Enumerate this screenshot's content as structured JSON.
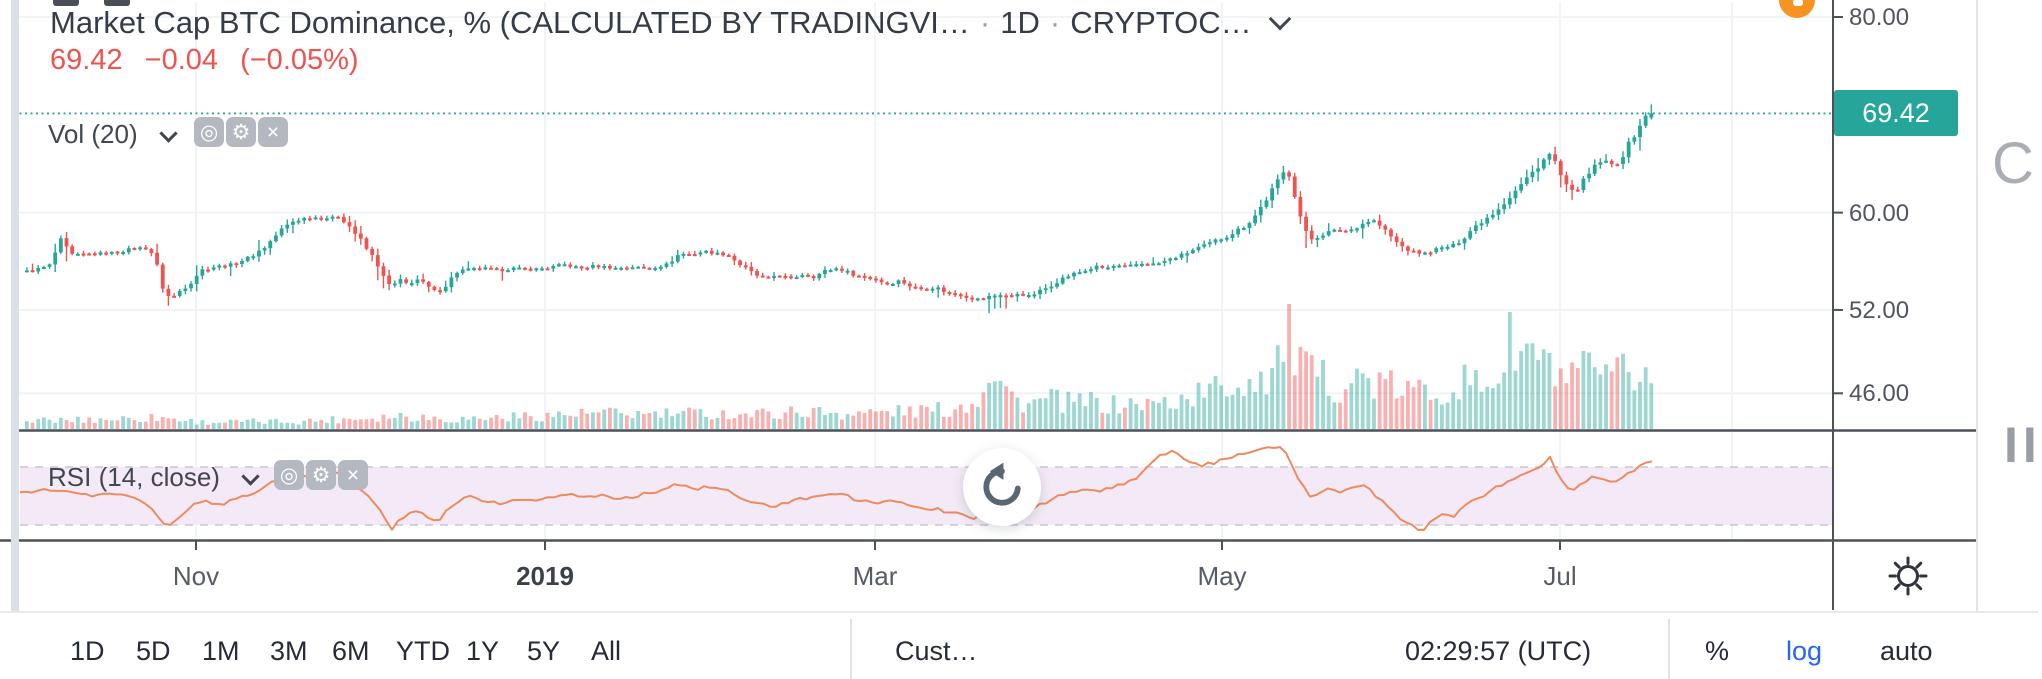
{
  "header": {
    "title": "Market Cap BTC Dominance, % (CALCULATED BY TRADINGVI…",
    "sep": "·",
    "interval": "1D",
    "exchange": "CRYPTOC…"
  },
  "quote": {
    "last": "69.42",
    "change": "−0.04",
    "change_pct": "(−0.05%)"
  },
  "indicators": {
    "volume": {
      "label": "Vol (20)"
    },
    "rsi": {
      "label": "RSI (14, close)"
    },
    "icon_glyphs": [
      "◎",
      "⚙",
      "×"
    ],
    "icon_names": [
      "visibility-icon",
      "settings-icon",
      "remove-icon"
    ]
  },
  "price_axis": {
    "last_price_label": "69.42",
    "ticks": [
      {
        "label": "80.00",
        "price": 80
      },
      {
        "label": "60.00",
        "price": 60
      },
      {
        "label": "52.00",
        "price": 52
      },
      {
        "label": "46.00",
        "price": 46
      }
    ]
  },
  "time_axis": {
    "ticks": [
      {
        "label": "Nov",
        "x": 196,
        "bold": false
      },
      {
        "label": "2019",
        "x": 545,
        "bold": true
      },
      {
        "label": "Mar",
        "x": 875,
        "bold": false
      },
      {
        "label": "May",
        "x": 1222,
        "bold": false
      },
      {
        "label": "Jul",
        "x": 1560,
        "bold": false
      }
    ],
    "extra_gridline_x": 1732
  },
  "footer": {
    "ranges": [
      "1D",
      "5D",
      "1M",
      "3M",
      "6M",
      "YTD",
      "1Y",
      "5Y",
      "All"
    ],
    "custom_label": "Cust…",
    "clock": "02:29:57 (UTC)",
    "percent_label": "%",
    "log_label": "log",
    "auto_label": "auto"
  },
  "right_edge": {
    "top_letter": "C",
    "bottom_letters": "II"
  },
  "colors": {
    "up": "#26a69a",
    "down": "#ef5350",
    "vol_up": "rgba(38,166,154,0.45)",
    "vol_down": "rgba(239,83,80,0.45)",
    "rsi_line": "#ec8b5e",
    "rsi_band": "#f4eaf7",
    "rsi_dash": "#cbc3d4",
    "grid": "#f0f3f8",
    "axis": "#4d515a",
    "badge": "#26a69a",
    "log_blue": "#2962ff",
    "orange_badge": "#f79321"
  },
  "chart_data": {
    "type": "candlestick",
    "title": "Market Cap BTC Dominance, %",
    "interval": "1D",
    "price_scale": "logarithmic",
    "x_tick_labels": [
      "Nov",
      "2019",
      "Mar",
      "May",
      "Jul"
    ],
    "y_ticks": [
      80,
      60,
      52,
      46
    ],
    "last_price": 69.42,
    "candle_start_x": 25,
    "candle_step": 5.66,
    "candle_end_x": 1652,
    "price_y_map": {
      "y_at_80": 17,
      "log_coeff": 680
    },
    "rsi_band": [
      30,
      70
    ],
    "series_close_keypoints": [
      [
        22,
        55.0
      ],
      [
        40,
        55.3
      ],
      [
        50,
        55.6
      ],
      [
        57,
        57.6
      ],
      [
        62,
        57.3
      ],
      [
        68,
        56.3
      ],
      [
        78,
        56.4
      ],
      [
        95,
        56.5
      ],
      [
        115,
        56.6
      ],
      [
        135,
        57.0
      ],
      [
        148,
        56.9
      ],
      [
        156,
        55.2
      ],
      [
        163,
        53.2
      ],
      [
        170,
        52.9
      ],
      [
        178,
        53.5
      ],
      [
        188,
        54.1
      ],
      [
        198,
        55.1
      ],
      [
        212,
        55.4
      ],
      [
        230,
        55.6
      ],
      [
        248,
        56.2
      ],
      [
        264,
        57.1
      ],
      [
        278,
        58.4
      ],
      [
        290,
        59.2
      ],
      [
        302,
        59.5
      ],
      [
        315,
        59.6
      ],
      [
        328,
        59.5
      ],
      [
        337,
        59.7
      ],
      [
        346,
        59.0
      ],
      [
        356,
        57.9
      ],
      [
        366,
        56.7
      ],
      [
        375,
        55.8
      ],
      [
        382,
        54.4
      ],
      [
        389,
        53.8
      ],
      [
        398,
        54.3
      ],
      [
        406,
        54.0
      ],
      [
        415,
        54.4
      ],
      [
        424,
        53.9
      ],
      [
        432,
        53.4
      ],
      [
        440,
        53.6
      ],
      [
        448,
        54.3
      ],
      [
        456,
        55.1
      ],
      [
        468,
        55.2
      ],
      [
        482,
        55.3
      ],
      [
        496,
        55.1
      ],
      [
        512,
        55.3
      ],
      [
        528,
        55.2
      ],
      [
        545,
        55.3
      ],
      [
        562,
        55.6
      ],
      [
        578,
        55.3
      ],
      [
        595,
        55.5
      ],
      [
        612,
        55.3
      ],
      [
        630,
        55.4
      ],
      [
        648,
        55.3
      ],
      [
        665,
        55.6
      ],
      [
        678,
        56.5
      ],
      [
        690,
        56.4
      ],
      [
        702,
        56.7
      ],
      [
        714,
        56.5
      ],
      [
        726,
        56.4
      ],
      [
        738,
        55.6
      ],
      [
        752,
        54.8
      ],
      [
        764,
        54.4
      ],
      [
        776,
        54.8
      ],
      [
        788,
        54.4
      ],
      [
        800,
        54.8
      ],
      [
        812,
        54.6
      ],
      [
        824,
        55.1
      ],
      [
        836,
        55.3
      ],
      [
        848,
        54.9
      ],
      [
        860,
        54.6
      ],
      [
        874,
        54.4
      ],
      [
        886,
        54.0
      ],
      [
        898,
        54.3
      ],
      [
        910,
        53.8
      ],
      [
        922,
        53.6
      ],
      [
        934,
        53.8
      ],
      [
        946,
        53.3
      ],
      [
        958,
        53.2
      ],
      [
        970,
        52.9
      ],
      [
        980,
        52.8
      ],
      [
        990,
        53.1
      ],
      [
        1000,
        53.2
      ],
      [
        1010,
        53.0
      ],
      [
        1018,
        53.4
      ],
      [
        1026,
        53.0
      ],
      [
        1034,
        53.3
      ],
      [
        1044,
        53.7
      ],
      [
        1054,
        54.2
      ],
      [
        1064,
        54.6
      ],
      [
        1074,
        54.9
      ],
      [
        1084,
        55.1
      ],
      [
        1094,
        55.4
      ],
      [
        1104,
        55.3
      ],
      [
        1114,
        55.5
      ],
      [
        1124,
        55.4
      ],
      [
        1134,
        55.6
      ],
      [
        1144,
        55.7
      ],
      [
        1154,
        55.6
      ],
      [
        1164,
        55.9
      ],
      [
        1174,
        56.2
      ],
      [
        1184,
        56.5
      ],
      [
        1194,
        56.9
      ],
      [
        1204,
        57.2
      ],
      [
        1214,
        57.6
      ],
      [
        1224,
        57.9
      ],
      [
        1234,
        58.4
      ],
      [
        1244,
        58.9
      ],
      [
        1252,
        59.6
      ],
      [
        1260,
        60.6
      ],
      [
        1268,
        61.7
      ],
      [
        1276,
        62.8
      ],
      [
        1283,
        63.8
      ],
      [
        1288,
        63.3
      ],
      [
        1293,
        61.6
      ],
      [
        1298,
        59.8
      ],
      [
        1304,
        58.2
      ],
      [
        1310,
        57.7
      ],
      [
        1318,
        58.0
      ],
      [
        1326,
        58.3
      ],
      [
        1336,
        58.5
      ],
      [
        1346,
        58.4
      ],
      [
        1356,
        58.8
      ],
      [
        1364,
        59.2
      ],
      [
        1372,
        59.3
      ],
      [
        1380,
        58.7
      ],
      [
        1388,
        58.0
      ],
      [
        1396,
        57.3
      ],
      [
        1404,
        56.9
      ],
      [
        1412,
        56.6
      ],
      [
        1422,
        56.5
      ],
      [
        1432,
        56.8
      ],
      [
        1442,
        57.0
      ],
      [
        1452,
        57.2
      ],
      [
        1460,
        57.7
      ],
      [
        1468,
        58.4
      ],
      [
        1476,
        59.0
      ],
      [
        1484,
        59.5
      ],
      [
        1492,
        60.0
      ],
      [
        1500,
        60.7
      ],
      [
        1508,
        61.4
      ],
      [
        1516,
        62.2
      ],
      [
        1524,
        63.0
      ],
      [
        1532,
        63.8
      ],
      [
        1540,
        64.7
      ],
      [
        1547,
        65.4
      ],
      [
        1553,
        64.7
      ],
      [
        1559,
        63.3
      ],
      [
        1565,
        62.2
      ],
      [
        1571,
        61.8
      ],
      [
        1577,
        62.3
      ],
      [
        1583,
        63.0
      ],
      [
        1589,
        63.7
      ],
      [
        1595,
        64.4
      ],
      [
        1601,
        64.9
      ],
      [
        1607,
        64.5
      ],
      [
        1613,
        64.2
      ],
      [
        1619,
        65.0
      ],
      [
        1625,
        66.0
      ],
      [
        1631,
        67.0
      ],
      [
        1637,
        68.1
      ],
      [
        1643,
        69.0
      ],
      [
        1650,
        69.42
      ]
    ],
    "volume_height_keypoints": [
      [
        25,
        8
      ],
      [
        100,
        10
      ],
      [
        160,
        12
      ],
      [
        200,
        7
      ],
      [
        300,
        8
      ],
      [
        370,
        12
      ],
      [
        400,
        14
      ],
      [
        450,
        10
      ],
      [
        500,
        12
      ],
      [
        545,
        14
      ],
      [
        600,
        16
      ],
      [
        650,
        15
      ],
      [
        700,
        16
      ],
      [
        750,
        15
      ],
      [
        800,
        18
      ],
      [
        850,
        16
      ],
      [
        900,
        18
      ],
      [
        950,
        20
      ],
      [
        975,
        30
      ],
      [
        988,
        70
      ],
      [
        1000,
        46
      ],
      [
        1012,
        30
      ],
      [
        1030,
        26
      ],
      [
        1050,
        30
      ],
      [
        1070,
        26
      ],
      [
        1090,
        28
      ],
      [
        1110,
        24
      ],
      [
        1130,
        26
      ],
      [
        1150,
        25
      ],
      [
        1170,
        28
      ],
      [
        1190,
        34
      ],
      [
        1210,
        40
      ],
      [
        1230,
        45
      ],
      [
        1250,
        52
      ],
      [
        1270,
        60
      ],
      [
        1285,
        95
      ],
      [
        1295,
        75
      ],
      [
        1305,
        56
      ],
      [
        1320,
        50
      ],
      [
        1340,
        46
      ],
      [
        1360,
        52
      ],
      [
        1380,
        44
      ],
      [
        1400,
        40
      ],
      [
        1420,
        38
      ],
      [
        1440,
        42
      ],
      [
        1460,
        48
      ],
      [
        1480,
        44
      ],
      [
        1500,
        60
      ],
      [
        1510,
        92
      ],
      [
        1520,
        70
      ],
      [
        1530,
        85
      ],
      [
        1540,
        65
      ],
      [
        1550,
        58
      ],
      [
        1560,
        52
      ],
      [
        1570,
        48
      ],
      [
        1580,
        55
      ],
      [
        1590,
        62
      ],
      [
        1600,
        50
      ],
      [
        1610,
        45
      ],
      [
        1620,
        58
      ],
      [
        1630,
        52
      ],
      [
        1640,
        60
      ],
      [
        1650,
        55
      ]
    ],
    "rsi_keypoints": [
      [
        20,
        52
      ],
      [
        45,
        55
      ],
      [
        70,
        54
      ],
      [
        90,
        50
      ],
      [
        110,
        52
      ],
      [
        130,
        49
      ],
      [
        148,
        45
      ],
      [
        160,
        34
      ],
      [
        168,
        28
      ],
      [
        178,
        36
      ],
      [
        192,
        43
      ],
      [
        205,
        47
      ],
      [
        220,
        44
      ],
      [
        235,
        48
      ],
      [
        255,
        53
      ],
      [
        275,
        60
      ],
      [
        295,
        65
      ],
      [
        315,
        63
      ],
      [
        337,
        66
      ],
      [
        352,
        58
      ],
      [
        368,
        50
      ],
      [
        380,
        40
      ],
      [
        391,
        27
      ],
      [
        402,
        35
      ],
      [
        414,
        41
      ],
      [
        426,
        36
      ],
      [
        438,
        32
      ],
      [
        452,
        44
      ],
      [
        468,
        50
      ],
      [
        485,
        47
      ],
      [
        500,
        45
      ],
      [
        515,
        48
      ],
      [
        532,
        46
      ],
      [
        548,
        49
      ],
      [
        565,
        52
      ],
      [
        582,
        48
      ],
      [
        600,
        51
      ],
      [
        618,
        48
      ],
      [
        636,
        50
      ],
      [
        655,
        53
      ],
      [
        675,
        58
      ],
      [
        695,
        55
      ],
      [
        715,
        57
      ],
      [
        735,
        51
      ],
      [
        755,
        45
      ],
      [
        775,
        43
      ],
      [
        795,
        47
      ],
      [
        815,
        50
      ],
      [
        835,
        52
      ],
      [
        855,
        48
      ],
      [
        875,
        45
      ],
      [
        895,
        47
      ],
      [
        915,
        42
      ],
      [
        935,
        41
      ],
      [
        955,
        38
      ],
      [
        975,
        35
      ],
      [
        995,
        41
      ],
      [
        1015,
        37
      ],
      [
        1035,
        42
      ],
      [
        1055,
        49
      ],
      [
        1075,
        54
      ],
      [
        1095,
        53
      ],
      [
        1115,
        56
      ],
      [
        1135,
        62
      ],
      [
        1150,
        72
      ],
      [
        1162,
        79
      ],
      [
        1172,
        81
      ],
      [
        1185,
        76
      ],
      [
        1200,
        71
      ],
      [
        1215,
        73
      ],
      [
        1230,
        77
      ],
      [
        1248,
        80
      ],
      [
        1266,
        83
      ],
      [
        1282,
        85
      ],
      [
        1292,
        70
      ],
      [
        1302,
        57
      ],
      [
        1312,
        49
      ],
      [
        1322,
        53
      ],
      [
        1332,
        55
      ],
      [
        1342,
        52
      ],
      [
        1352,
        56
      ],
      [
        1362,
        58
      ],
      [
        1372,
        53
      ],
      [
        1382,
        46
      ],
      [
        1392,
        39
      ],
      [
        1402,
        33
      ],
      [
        1412,
        29
      ],
      [
        1422,
        26
      ],
      [
        1432,
        33
      ],
      [
        1442,
        37
      ],
      [
        1452,
        35
      ],
      [
        1462,
        42
      ],
      [
        1472,
        46
      ],
      [
        1482,
        50
      ],
      [
        1492,
        54
      ],
      [
        1502,
        58
      ],
      [
        1512,
        62
      ],
      [
        1522,
        65
      ],
      [
        1532,
        68
      ],
      [
        1542,
        72
      ],
      [
        1550,
        76
      ],
      [
        1556,
        67
      ],
      [
        1564,
        57
      ],
      [
        1572,
        54
      ],
      [
        1580,
        58
      ],
      [
        1588,
        61
      ],
      [
        1596,
        64
      ],
      [
        1604,
        61
      ],
      [
        1612,
        59
      ],
      [
        1620,
        62
      ],
      [
        1628,
        65
      ],
      [
        1636,
        68
      ],
      [
        1645,
        73
      ],
      [
        1652,
        75
      ]
    ]
  }
}
